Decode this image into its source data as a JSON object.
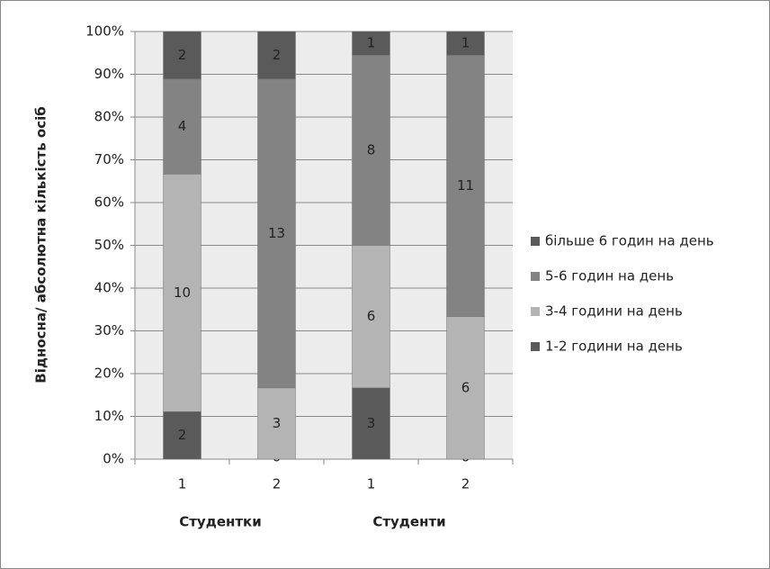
{
  "chart_data": {
    "type": "stacked_bar_percent",
    "y_axis_title": "Відносна/ абсолютна кількість осіб",
    "categories": [
      "1",
      "2",
      "1",
      "2"
    ],
    "group_labels": [
      "Студентки",
      "Студенти"
    ],
    "series": [
      {
        "name": "1-2 години на день",
        "color": "#5a5a5a",
        "values": [
          2,
          0,
          3,
          0
        ]
      },
      {
        "name": "3-4 години на день",
        "color": "#b4b4b4",
        "values": [
          10,
          3,
          6,
          6
        ]
      },
      {
        "name": "5-6 годин на день",
        "color": "#838383",
        "values": [
          4,
          13,
          8,
          11
        ]
      },
      {
        "name": "більше 6 годин на день",
        "color": "#5a5a5a",
        "values": [
          2,
          2,
          1,
          1
        ]
      }
    ],
    "ylim": [
      0,
      100
    ],
    "yticks": [
      {
        "value": 0,
        "label": "0%"
      },
      {
        "value": 10,
        "label": "10%"
      },
      {
        "value": 20,
        "label": "20%"
      },
      {
        "value": 30,
        "label": "30%"
      },
      {
        "value": 40,
        "label": "40%"
      },
      {
        "value": 50,
        "label": "50%"
      },
      {
        "value": 60,
        "label": "60%"
      },
      {
        "value": 70,
        "label": "70%"
      },
      {
        "value": 80,
        "label": "80%"
      },
      {
        "value": 90,
        "label": "90%"
      },
      {
        "value": 100,
        "label": "100%"
      }
    ],
    "grid": true,
    "legend": "right"
  }
}
